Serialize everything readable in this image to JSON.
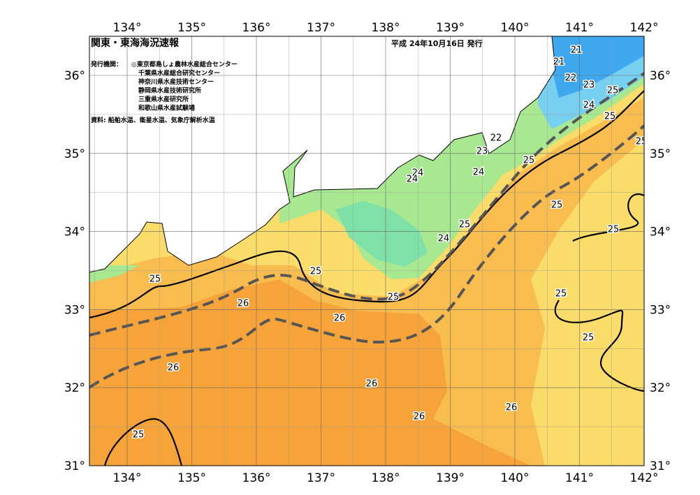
{
  "header": {
    "title": "関東・東海海況速報",
    "date": "平成 24年10月16日 発行"
  },
  "issuers": {
    "label": "発行機関：",
    "items": [
      "◎東京都島しょ農林水産総合センター",
      "千葉県水産総合研究センター",
      "神奈川県水産技術センター",
      "静岡県水産技術研究所",
      "三重県水産研究所",
      "和歌山県水産試験場"
    ]
  },
  "source": "資料: 船舶水温、衛星水温、気象庁解析水温",
  "axes": {
    "lon_ticks": [
      {
        "value": 134,
        "label": "134°"
      },
      {
        "value": 135,
        "label": "135°"
      },
      {
        "value": 136,
        "label": "136°"
      },
      {
        "value": 137,
        "label": "137°"
      },
      {
        "value": 138,
        "label": "138°"
      },
      {
        "value": 139,
        "label": "139°"
      },
      {
        "value": 140,
        "label": "140°"
      },
      {
        "value": 141,
        "label": "141°"
      },
      {
        "value": 142,
        "label": "142°"
      }
    ],
    "lat_ticks": [
      {
        "value": 36,
        "label": "36°"
      },
      {
        "value": 35,
        "label": "35°"
      },
      {
        "value": 34,
        "label": "34°"
      },
      {
        "value": 33,
        "label": "33°"
      },
      {
        "value": 32,
        "label": "32°"
      },
      {
        "value": 31,
        "label": "31°"
      }
    ]
  },
  "contour_labels": [
    "21",
    "21",
    "22",
    "23",
    "25",
    "24",
    "25",
    "22",
    "23",
    "24",
    "24",
    "24",
    "25",
    "25",
    "25",
    "25",
    "25",
    "24",
    "25",
    "25",
    "26",
    "26",
    "25",
    "25",
    "25",
    "26",
    "26",
    "26",
    "26",
    "25"
  ]
}
